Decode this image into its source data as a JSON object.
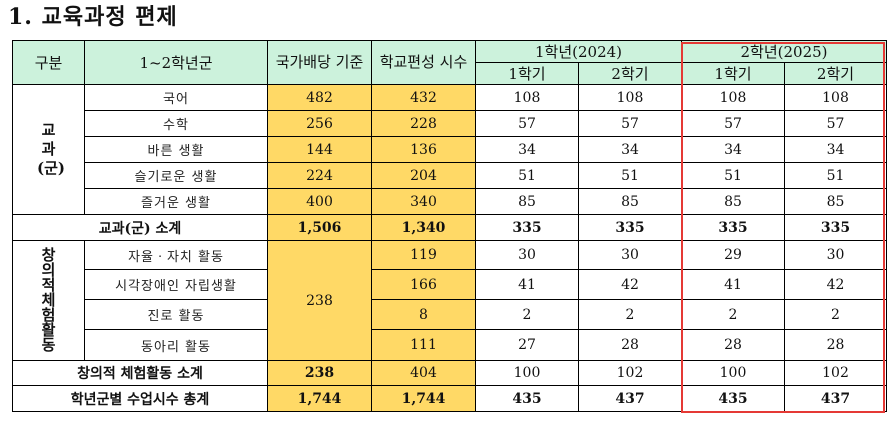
{
  "title": "1. 교육과정 편제",
  "headers": {
    "category": "구분",
    "grade_group": "1~2학년군",
    "national": "국가배당 기준",
    "school": "학교편성 시수",
    "year1": "1학년(2024)",
    "year2": "2학년(2025)",
    "sem1": "1학기",
    "sem2": "2학기"
  },
  "subjects_category": "교과(군)",
  "subjects": [
    {
      "name": "국어",
      "national": "482",
      "school": "432",
      "y1s1": "108",
      "y1s2": "108",
      "y2s1": "108",
      "y2s2": "108"
    },
    {
      "name": "수학",
      "national": "256",
      "school": "228",
      "y1s1": "57",
      "y1s2": "57",
      "y2s1": "57",
      "y2s2": "57"
    },
    {
      "name": "바른 생활",
      "national": "144",
      "school": "136",
      "y1s1": "34",
      "y1s2": "34",
      "y2s1": "34",
      "y2s2": "34"
    },
    {
      "name": "슬기로운 생활",
      "national": "224",
      "school": "204",
      "y1s1": "51",
      "y1s2": "51",
      "y2s1": "51",
      "y2s2": "51"
    },
    {
      "name": "즐거운 생활",
      "national": "400",
      "school": "340",
      "y1s1": "85",
      "y1s2": "85",
      "y2s1": "85",
      "y2s2": "85"
    }
  ],
  "subjects_total": {
    "label": "교과(군) 소계",
    "national": "1,506",
    "school": "1,340",
    "y1s1": "335",
    "y1s2": "335",
    "y2s1": "335",
    "y2s2": "335"
  },
  "activities_category": "창의적체험활동",
  "activities_national": "238",
  "activities": [
    {
      "name": "자율ㆍ자치 활동",
      "school": "119",
      "y1s1": "30",
      "y1s2": "30",
      "y2s1": "29",
      "y2s2": "30"
    },
    {
      "name": "시각장애인 자립생활",
      "school": "166",
      "y1s1": "41",
      "y1s2": "42",
      "y2s1": "41",
      "y2s2": "42"
    },
    {
      "name": "진로 활동",
      "school": "8",
      "y1s1": "2",
      "y1s2": "2",
      "y2s1": "2",
      "y2s2": "2"
    },
    {
      "name": "동아리 활동",
      "school": "111",
      "y1s1": "27",
      "y1s2": "28",
      "y2s1": "28",
      "y2s2": "28"
    }
  ],
  "activities_total": {
    "label": "창의적 체험활동 소계",
    "national": "238",
    "school": "404",
    "y1s1": "100",
    "y1s2": "102",
    "y2s1": "100",
    "y2s2": "102"
  },
  "grand_total": {
    "label": "학년군별 수업시수 총계",
    "national": "1,744",
    "school": "1,744",
    "y1s1": "435",
    "y1s2": "437",
    "y2s1": "435",
    "y2s2": "437"
  },
  "highlight_color": "#e53935"
}
